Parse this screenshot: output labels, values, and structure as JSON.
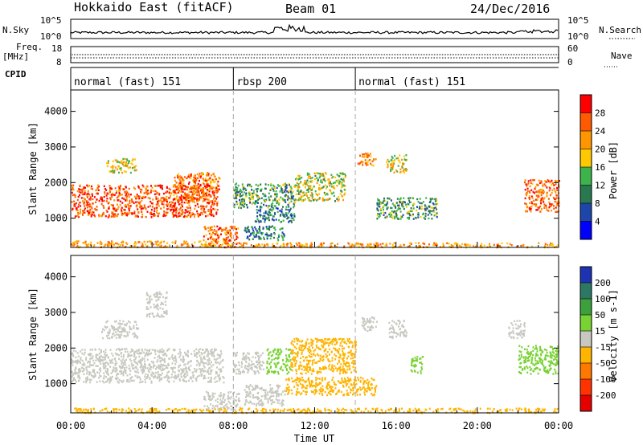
{
  "header": {
    "station": "Hokkaido East (fitACF)",
    "beam": "Beam 01",
    "date": "24/Dec/2016"
  },
  "noise_panel": {
    "left_label": "N.Sky",
    "right_label": "N.Search",
    "left_ticks": [
      "10^5",
      "10^0"
    ],
    "right_ticks": [
      "10^5",
      "10^0"
    ]
  },
  "freq_panel": {
    "left_label_1": "Freq.",
    "left_label_2": "[MHz]",
    "right_label": "Nave",
    "left_ticks": [
      "18",
      "8"
    ],
    "right_ticks": [
      "60",
      "0"
    ],
    "frequency_mhz": 11,
    "nave": 30
  },
  "cpid": {
    "label": "CPID",
    "segments": [
      {
        "name": "normal (fast) 151",
        "start_hour": 0,
        "end_hour": 8
      },
      {
        "name": "rbsp 200",
        "start_hour": 8,
        "end_hour": 14
      },
      {
        "name": "normal (fast) 151",
        "start_hour": 14,
        "end_hour": 24
      }
    ]
  },
  "power_colorbar": {
    "label": "Power [dB]",
    "ticks": [
      "28",
      "24",
      "20",
      "16",
      "12",
      "8",
      "4"
    ],
    "colors": [
      "#ff0000",
      "#ff5a00",
      "#ff9600",
      "#ffc800",
      "#3cb44b",
      "#287850",
      "#1e46aa",
      "#0000ff"
    ]
  },
  "velocity_colorbar": {
    "label": "Velocity [m s-1]",
    "ticks": [
      "200",
      "100",
      "50",
      "15",
      "-15",
      "-50",
      "-100",
      "-200"
    ],
    "colors": [
      "#1e32b4",
      "#2d7864",
      "#3ca03c",
      "#78d232",
      "#c8c8c0",
      "#ffb400",
      "#ff7800",
      "#ff3200",
      "#e60000"
    ]
  },
  "chart_data": [
    {
      "type": "heatmap",
      "title": "Power",
      "xlabel": "Time UT",
      "ylabel": "Slant Range [km]",
      "x_ticks": [
        "00:00",
        "04:00",
        "08:00",
        "12:00",
        "16:00",
        "20:00",
        "00:00"
      ],
      "y_ticks": [
        "4000",
        "3000",
        "2000",
        "1000"
      ],
      "xlim_hours": [
        0,
        24
      ],
      "ylim_km": [
        180,
        4600
      ],
      "value_label": "Power [dB]",
      "clim": [
        0,
        30
      ],
      "regions": [
        {
          "t0": 0.0,
          "t1": 7.2,
          "r0": 1050,
          "r1": 1950,
          "value": 27
        },
        {
          "t0": 5.0,
          "t1": 7.3,
          "r0": 1500,
          "r1": 2300,
          "value": 24
        },
        {
          "t0": 1.7,
          "t1": 3.2,
          "r0": 2300,
          "r1": 2700,
          "value": 18
        },
        {
          "t0": 6.5,
          "t1": 8.2,
          "r0": 200,
          "r1": 800,
          "value": 25
        },
        {
          "t0": 0.0,
          "t1": 8.0,
          "r0": 200,
          "r1": 380,
          "value": 22
        },
        {
          "t0": 8.0,
          "t1": 11.0,
          "r0": 1300,
          "r1": 2000,
          "value": 12
        },
        {
          "t0": 11.0,
          "t1": 13.5,
          "r0": 1500,
          "r1": 2300,
          "value": 17
        },
        {
          "t0": 9.0,
          "t1": 11.0,
          "r0": 900,
          "r1": 1300,
          "value": 9
        },
        {
          "t0": 8.5,
          "t1": 10.5,
          "r0": 400,
          "r1": 800,
          "value": 10
        },
        {
          "t0": 8.0,
          "t1": 24.0,
          "r0": 200,
          "r1": 330,
          "value": 22
        },
        {
          "t0": 14.1,
          "t1": 15.0,
          "r0": 2500,
          "r1": 2850,
          "value": 22
        },
        {
          "t0": 15.5,
          "t1": 16.5,
          "r0": 2300,
          "r1": 2800,
          "value": 18
        },
        {
          "t0": 22.3,
          "t1": 24.0,
          "r0": 1200,
          "r1": 2100,
          "value": 25
        },
        {
          "t0": 15.0,
          "t1": 18.0,
          "r0": 1000,
          "r1": 1600,
          "value": 12
        }
      ]
    },
    {
      "type": "heatmap",
      "title": "Velocity",
      "xlabel": "Time UT",
      "ylabel": "Slant Range [km]",
      "x_ticks": [
        "00:00",
        "04:00",
        "08:00",
        "12:00",
        "16:00",
        "20:00",
        "00:00"
      ],
      "y_ticks": [
        "4000",
        "3000",
        "2000",
        "1000"
      ],
      "xlim_hours": [
        0,
        24
      ],
      "ylim_km": [
        180,
        4600
      ],
      "value_label": "Velocity [m s-1]",
      "clim": [
        -250,
        250
      ],
      "regions": [
        {
          "t0": 0.0,
          "t1": 7.5,
          "r0": 1050,
          "r1": 2000,
          "value": 0
        },
        {
          "t0": 1.5,
          "t1": 3.3,
          "r0": 2300,
          "r1": 2800,
          "value": 0
        },
        {
          "t0": 3.7,
          "t1": 4.7,
          "r0": 2900,
          "r1": 3600,
          "value": 0
        },
        {
          "t0": 6.5,
          "t1": 8.3,
          "r0": 300,
          "r1": 800,
          "value": 0
        },
        {
          "t0": 8.0,
          "t1": 9.5,
          "r0": 1300,
          "r1": 1900,
          "value": 0
        },
        {
          "t0": 9.6,
          "t1": 10.8,
          "r0": 1300,
          "r1": 2000,
          "value": 30
        },
        {
          "t0": 10.8,
          "t1": 14.0,
          "r0": 1300,
          "r1": 2300,
          "value": -35
        },
        {
          "t0": 8.5,
          "t1": 10.5,
          "r0": 400,
          "r1": 1000,
          "value": 0
        },
        {
          "t0": 10.5,
          "t1": 15.0,
          "r0": 700,
          "r1": 1200,
          "value": -35
        },
        {
          "t0": 0.0,
          "t1": 24.0,
          "r0": 200,
          "r1": 330,
          "value": -25
        },
        {
          "t0": 14.3,
          "t1": 15.1,
          "r0": 2500,
          "r1": 2900,
          "value": 0
        },
        {
          "t0": 15.6,
          "t1": 16.5,
          "r0": 2300,
          "r1": 2800,
          "value": 0
        },
        {
          "t0": 16.7,
          "t1": 17.3,
          "r0": 1300,
          "r1": 1800,
          "value": 30
        },
        {
          "t0": 22.0,
          "t1": 24.0,
          "r0": 1300,
          "r1": 2100,
          "value": 25
        },
        {
          "t0": 21.5,
          "t1": 22.3,
          "r0": 2300,
          "r1": 2800,
          "value": 0
        }
      ]
    }
  ]
}
